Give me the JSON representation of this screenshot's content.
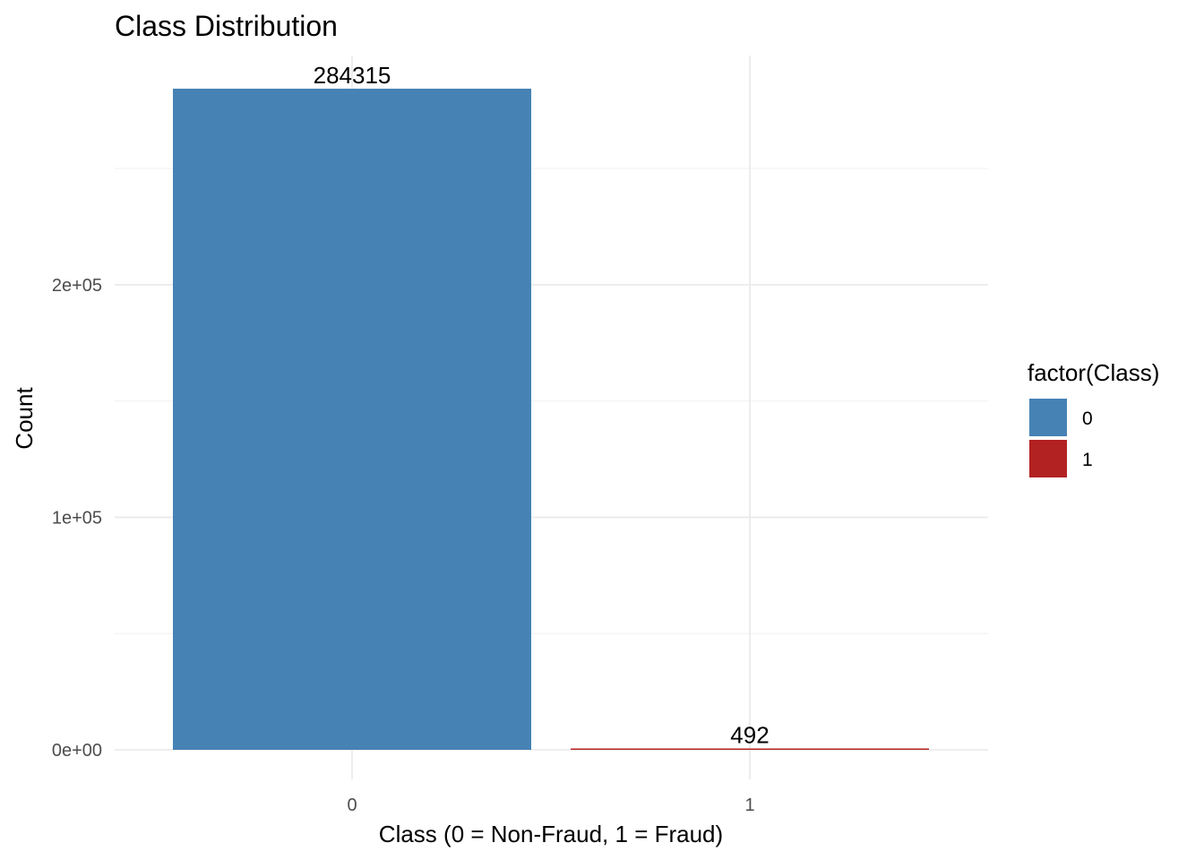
{
  "chart_data": {
    "type": "bar",
    "title": "Class Distribution",
    "xlabel": "Class (0 = Non-Fraud, 1 = Fraud)",
    "ylabel": "Count",
    "categories": [
      "0",
      "1"
    ],
    "values": [
      284315,
      492
    ],
    "data_labels": [
      "284315",
      "492"
    ],
    "colors": [
      "#4682b4",
      "#b22222"
    ],
    "ylim": [
      0,
      284315
    ],
    "yticks": [
      0,
      100000,
      200000
    ],
    "ytick_labels": [
      "0e+00",
      "1e+05",
      "2e+05"
    ],
    "grid": true,
    "legend": {
      "title": "factor(Class)",
      "placement": "right",
      "entries": [
        "0",
        "1"
      ]
    }
  }
}
